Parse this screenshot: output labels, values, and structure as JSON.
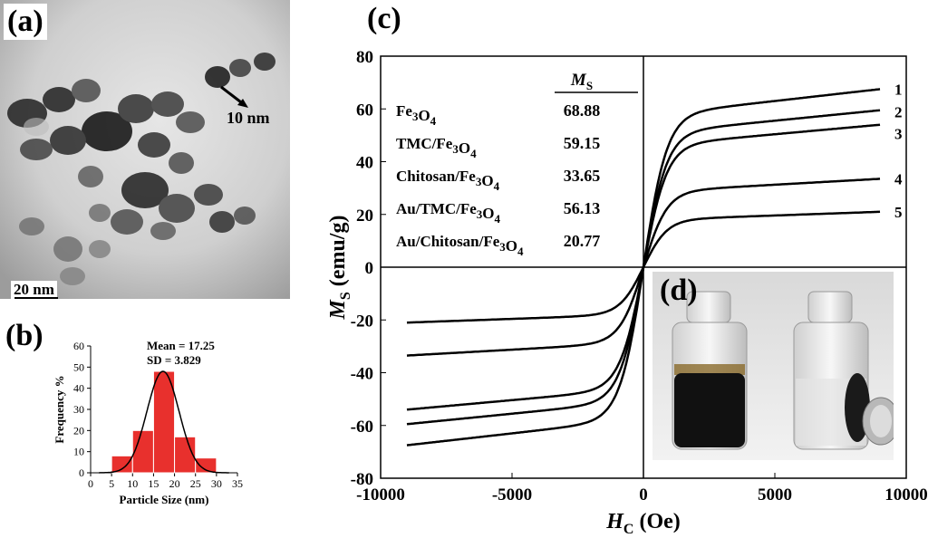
{
  "panels": {
    "a": {
      "label": "(a)",
      "size_annotation": "10 nm",
      "scale_bar": "20 nm"
    },
    "b": {
      "label": "(b)"
    },
    "c": {
      "label": "(c)"
    },
    "d": {
      "label": "(d)"
    }
  },
  "chart_data": [
    {
      "type": "bar",
      "panel": "b",
      "xlabel": "Particle Size (nm)",
      "ylabel": "Frequency %",
      "xlim": [
        0,
        35
      ],
      "ylim": [
        0,
        60
      ],
      "xticks": [
        0,
        5,
        10,
        15,
        20,
        25,
        30,
        35
      ],
      "yticks": [
        0,
        10,
        20,
        30,
        40,
        50,
        60
      ],
      "bins": [
        {
          "from": 5,
          "to": 10,
          "value": 8
        },
        {
          "from": 10,
          "to": 15,
          "value": 20
        },
        {
          "from": 15,
          "to": 20,
          "value": 48
        },
        {
          "from": 20,
          "to": 25,
          "value": 17
        },
        {
          "from": 25,
          "to": 30,
          "value": 7
        }
      ],
      "fit": {
        "mean": 17.25,
        "sd": 3.829,
        "peak": 48
      },
      "annotations": [
        "Mean = 17.25",
        "SD = 3.829"
      ],
      "bar_color": "#e8302d",
      "grid": false
    },
    {
      "type": "line",
      "panel": "c",
      "xlabel": "H",
      "xlabel_sub": "C",
      "xlabel_unit": "(Oe)",
      "ylabel": "M",
      "ylabel_sub": "S",
      "ylabel_unit": "(emu/g)",
      "xlim": [
        -10000,
        10000
      ],
      "ylim": [
        -80,
        80
      ],
      "xticks": [
        -10000,
        -5000,
        0,
        5000,
        10000
      ],
      "yticks": [
        -80,
        -60,
        -40,
        -20,
        0,
        20,
        40,
        60,
        80
      ],
      "x_extent": 9000,
      "series": [
        {
          "name": "1",
          "ms": 68.88,
          "end_value": 67.5
        },
        {
          "name": "2",
          "ms": 59.15,
          "end_value": 59.5
        },
        {
          "name": "3",
          "ms": 56.13,
          "end_value": 54.0
        },
        {
          "name": "4",
          "ms": 33.65,
          "end_value": 33.5
        },
        {
          "name": "5",
          "ms": 20.77,
          "end_value": 21.0
        }
      ],
      "table": {
        "header": "M",
        "header_sub": "S",
        "rows": [
          {
            "name": "Fe3O4",
            "value": "68.88"
          },
          {
            "name": "TMC/Fe3O4",
            "value": "59.15"
          },
          {
            "name": "Chitosan/Fe3O4",
            "value": "33.65"
          },
          {
            "name": "Au/TMC/Fe3O4",
            "value": "56.13"
          },
          {
            "name": "Au/Chitosan/Fe3O4",
            "value": "20.77"
          }
        ]
      },
      "line_color": "#000000",
      "grid": false
    }
  ]
}
